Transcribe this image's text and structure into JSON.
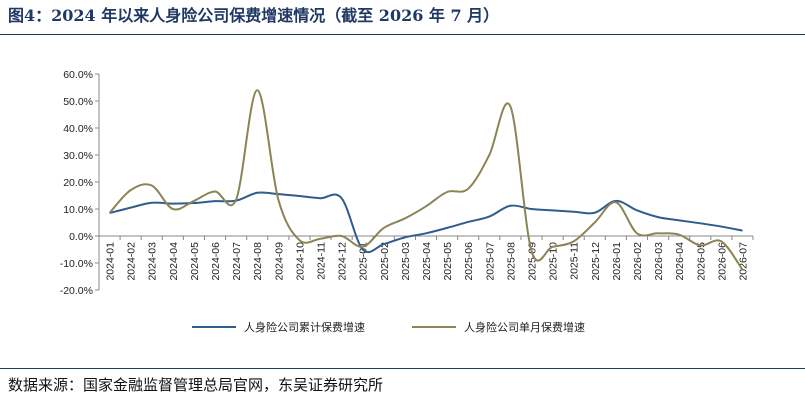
{
  "header": {
    "title": "图4：2024 年以来人身险公司保费增速情况（截至 2026 年 7 月）"
  },
  "footer": {
    "source": "数据来源：国家金融监督管理总局官网，东吴证券研究所"
  },
  "colors": {
    "cumulative": "#2e5d8e",
    "monthly": "#8b8455",
    "rule": "#1f3864"
  },
  "chart_data": {
    "type": "line",
    "xlabel": "",
    "ylabel": "",
    "ylim": [
      -20,
      60
    ],
    "yticks": [
      -20,
      -10,
      0,
      10,
      20,
      30,
      40,
      50,
      60
    ],
    "ytick_labels": [
      "-20.0%",
      "-10.0%",
      "0.0%",
      "10.0%",
      "20.0%",
      "30.0%",
      "40.0%",
      "50.0%",
      "60.0%"
    ],
    "grid": false,
    "legend_position": "bottom",
    "x": [
      "2024-01",
      "2024-02",
      "2024-03",
      "2024-04",
      "2024-05",
      "2024-06",
      "2024-07",
      "2024-08",
      "2024-09",
      "2024-10",
      "2024-11",
      "2024-12",
      "2025-01",
      "2025-02",
      "2025-03",
      "2025-04",
      "2025-05",
      "2025-06",
      "2025-07",
      "2025-08",
      "2025-09",
      "2025-10",
      "2025-11",
      "2025-12",
      "2026-01",
      "2026-02",
      "2026-03",
      "2026-04",
      "2026-05",
      "2026-06",
      "2026-07"
    ],
    "series": [
      {
        "name": "人身险公司累计保费增速",
        "values": [
          8.5,
          10.5,
          12.3,
          12.0,
          12.2,
          12.9,
          13.1,
          16.0,
          15.5,
          14.8,
          14.0,
          14.0,
          -5.0,
          -3.0,
          -0.5,
          1.0,
          3.0,
          5.2,
          7.2,
          11.2,
          10.0,
          9.5,
          9.0,
          8.6,
          13.0,
          9.5,
          7.0,
          5.8,
          4.7,
          3.5,
          2.0
        ]
      },
      {
        "name": "人身险公司单月保费增速",
        "values": [
          8.5,
          17.0,
          18.7,
          10.0,
          13.0,
          16.5,
          13.5,
          54.0,
          13.5,
          -1.5,
          -1.0,
          0.0,
          -4.0,
          3.0,
          6.5,
          11.0,
          16.3,
          17.5,
          30.0,
          48.0,
          -5.5,
          -4.0,
          -2.0,
          5.0,
          12.5,
          1.0,
          1.0,
          0.5,
          -3.5,
          -2.0,
          -12.5
        ]
      }
    ]
  }
}
